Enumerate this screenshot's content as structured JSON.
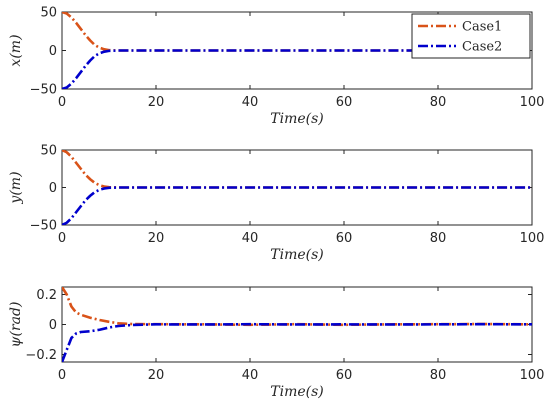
{
  "chart_data": [
    {
      "type": "line",
      "xlabel": "Time(s)",
      "ylabel": "x(m)",
      "xlim": [
        0,
        100
      ],
      "ylim": [
        -50,
        50
      ],
      "xticks": [
        "0",
        "20",
        "40",
        "60",
        "80",
        "100"
      ],
      "yticks": [
        "-50",
        "0",
        "50"
      ],
      "legend": {
        "placement": "top-right",
        "entries": [
          "Case1",
          "Case2"
        ]
      },
      "series": [
        {
          "name": "Case1",
          "color": "#D95319",
          "x": [
            0,
            1,
            2,
            3,
            4,
            5,
            6,
            7,
            8,
            9,
            10,
            12,
            15,
            20,
            30,
            40,
            50,
            60,
            70,
            80,
            90,
            100
          ],
          "y": [
            50,
            48,
            43,
            36,
            28,
            20,
            13,
            7,
            3.5,
            1.5,
            0.5,
            0,
            0,
            0,
            0,
            0,
            0,
            0,
            0,
            0,
            0,
            0
          ]
        },
        {
          "name": "Case2",
          "color": "#0000CC",
          "x": [
            0,
            1,
            2,
            3,
            4,
            5,
            6,
            7,
            8,
            9,
            10,
            12,
            15,
            20,
            30,
            40,
            50,
            60,
            70,
            80,
            90,
            100
          ],
          "y": [
            -50,
            -48,
            -43,
            -36,
            -28,
            -20,
            -13,
            -7,
            -3.5,
            -1.5,
            -0.5,
            0,
            0,
            0,
            0,
            0,
            0,
            0,
            0,
            0,
            0,
            0
          ]
        }
      ]
    },
    {
      "type": "line",
      "xlabel": "Time(s)",
      "ylabel": "y(m)",
      "xlim": [
        0,
        100
      ],
      "ylim": [
        -50,
        50
      ],
      "xticks": [
        "0",
        "20",
        "40",
        "60",
        "80",
        "100"
      ],
      "yticks": [
        "-50",
        "0",
        "50"
      ],
      "series": [
        {
          "name": "Case1",
          "color": "#D95319",
          "x": [
            0,
            1,
            2,
            3,
            4,
            5,
            6,
            7,
            8,
            9,
            10,
            12,
            15,
            20,
            30,
            40,
            50,
            60,
            70,
            80,
            90,
            100
          ],
          "y": [
            50,
            47,
            41,
            33,
            25,
            17,
            11,
            6,
            3,
            1.3,
            0.4,
            0,
            0,
            0,
            0,
            0,
            0,
            0,
            0,
            0,
            0,
            0
          ]
        },
        {
          "name": "Case2",
          "color": "#0000CC",
          "x": [
            0,
            1,
            2,
            3,
            4,
            5,
            6,
            7,
            8,
            9,
            10,
            12,
            15,
            20,
            30,
            40,
            50,
            60,
            70,
            80,
            90,
            100
          ],
          "y": [
            -50,
            -47,
            -41,
            -33,
            -25,
            -17,
            -11,
            -6,
            -3,
            -1.3,
            -0.4,
            0,
            0,
            0,
            0,
            0,
            0,
            0,
            0,
            0,
            0,
            0
          ]
        }
      ]
    },
    {
      "type": "line",
      "xlabel": "Time(s)",
      "ylabel": "ψ(rad)",
      "xlim": [
        0,
        100
      ],
      "ylim": [
        -0.25,
        0.25
      ],
      "xticks": [
        "0",
        "20",
        "40",
        "60",
        "80",
        "100"
      ],
      "yticks": [
        "-0.2",
        "0",
        "0.2"
      ],
      "series": [
        {
          "name": "Case1",
          "color": "#D95319",
          "x": [
            0,
            1,
            2,
            3,
            4,
            6,
            8,
            10,
            12,
            15,
            20,
            30,
            40,
            50,
            60,
            70,
            80,
            90,
            100
          ],
          "y": [
            0.25,
            0.2,
            0.12,
            0.08,
            0.065,
            0.045,
            0.03,
            0.018,
            0.008,
            0.003,
            0.002,
            0.001,
            -0.002,
            0.002,
            -0.002,
            0.001,
            0.002,
            0.003,
            0.001
          ]
        },
        {
          "name": "Case2",
          "color": "#0000CC",
          "x": [
            0,
            1,
            2,
            3,
            4,
            6,
            8,
            10,
            12,
            15,
            20,
            30,
            40,
            50,
            60,
            70,
            80,
            90,
            100
          ],
          "y": [
            -0.25,
            -0.17,
            -0.09,
            -0.06,
            -0.05,
            -0.045,
            -0.035,
            -0.02,
            -0.01,
            -0.003,
            0.001,
            0.0,
            0.002,
            0.0,
            0.001,
            0.0,
            0.001,
            0.002,
            0.001
          ]
        }
      ]
    }
  ]
}
